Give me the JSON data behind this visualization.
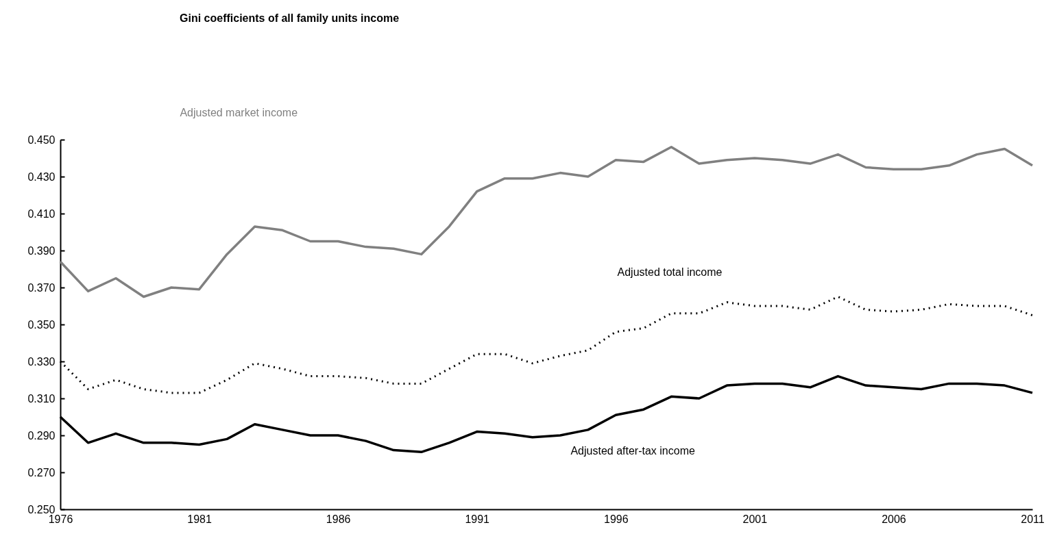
{
  "chart_data": {
    "type": "line",
    "title": "Gini coefficients of all family units income",
    "x": [
      1976,
      1977,
      1978,
      1979,
      1980,
      1981,
      1982,
      1983,
      1984,
      1985,
      1986,
      1987,
      1988,
      1989,
      1990,
      1991,
      1992,
      1993,
      1994,
      1995,
      1996,
      1997,
      1998,
      1999,
      2000,
      2001,
      2002,
      2003,
      2004,
      2005,
      2006,
      2007,
      2008,
      2009,
      2010,
      2011
    ],
    "xlim": [
      1976,
      2011
    ],
    "xticks": [
      1976,
      1981,
      1986,
      1991,
      1996,
      2001,
      2006,
      2011
    ],
    "ylim": [
      0.25,
      0.45
    ],
    "yticks": [
      {
        "value": 0.25,
        "label": "0.250"
      },
      {
        "value": 0.27,
        "label": "0.270"
      },
      {
        "value": 0.29,
        "label": "0.290"
      },
      {
        "value": 0.31,
        "label": "0.310"
      },
      {
        "value": 0.33,
        "label": "0.330"
      },
      {
        "value": 0.35,
        "label": "0.350"
      },
      {
        "value": 0.37,
        "label": "0.370"
      },
      {
        "value": 0.39,
        "label": "0.390"
      },
      {
        "value": 0.41,
        "label": "0.410"
      },
      {
        "value": 0.43,
        "label": "0.430"
      },
      {
        "value": 0.45,
        "label": "0.450"
      }
    ],
    "grid": false,
    "series": [
      {
        "name": "Adjusted market income",
        "color": "#808080",
        "line_style": "solid",
        "values": [
          0.384,
          0.368,
          0.375,
          0.365,
          0.37,
          0.369,
          0.388,
          0.403,
          0.401,
          0.395,
          0.395,
          0.392,
          0.391,
          0.388,
          0.403,
          0.422,
          0.429,
          0.429,
          0.432,
          0.43,
          0.439,
          0.438,
          0.446,
          0.437,
          0.439,
          0.44,
          0.439,
          0.437,
          0.442,
          0.435,
          0.434,
          0.434,
          0.436,
          0.442,
          0.445,
          0.436
        ]
      },
      {
        "name": "Adjusted total income",
        "color": "#000000",
        "line_style": "dotted",
        "values": [
          0.33,
          0.315,
          0.32,
          0.315,
          0.313,
          0.313,
          0.32,
          0.329,
          0.326,
          0.322,
          0.322,
          0.321,
          0.318,
          0.318,
          0.326,
          0.334,
          0.334,
          0.329,
          0.333,
          0.336,
          0.346,
          0.348,
          0.356,
          0.356,
          0.362,
          0.36,
          0.36,
          0.358,
          0.365,
          0.358,
          0.357,
          0.358,
          0.361,
          0.36,
          0.36,
          0.355
        ]
      },
      {
        "name": "Adjusted after-tax income",
        "color": "#000000",
        "line_style": "solid",
        "values": [
          0.3,
          0.286,
          0.291,
          0.286,
          0.286,
          0.285,
          0.288,
          0.296,
          0.293,
          0.29,
          0.29,
          0.287,
          0.282,
          0.281,
          0.286,
          0.292,
          0.291,
          0.289,
          0.29,
          0.293,
          0.301,
          0.304,
          0.311,
          0.31,
          0.317,
          0.318,
          0.318,
          0.316,
          0.322,
          0.317,
          0.316,
          0.315,
          0.318,
          0.318,
          0.317,
          0.313
        ]
      }
    ]
  }
}
